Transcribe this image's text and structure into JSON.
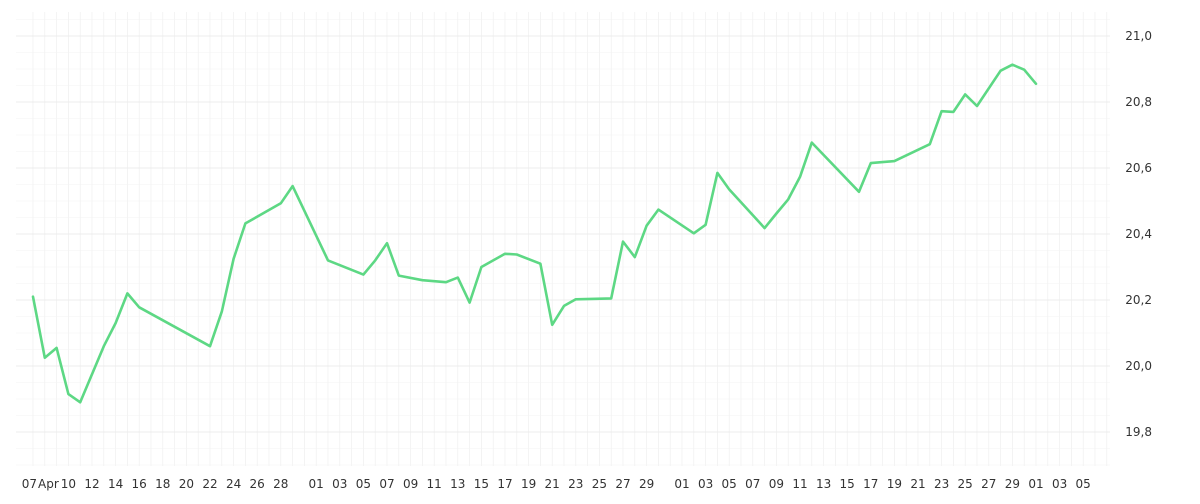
{
  "chart_data": {
    "type": "line",
    "title": "",
    "xlabel": "",
    "ylabel": "",
    "ylim": [
      19.7,
      21.05
    ],
    "y_ticks": [
      19.8,
      20.0,
      20.2,
      20.4,
      20.6,
      20.8,
      21.0
    ],
    "y_tick_labels": [
      "19,8",
      "20,0",
      "20,2",
      "20,4",
      "20,6",
      "20,8",
      "21,0"
    ],
    "y_axis_position": "right",
    "grid": true,
    "legend": "none",
    "colors": {
      "line": "#5dd884",
      "grid": "#ececec",
      "text": "#333333"
    },
    "x_tick_labels": [
      "07",
      "Apr",
      "10",
      "12",
      "14",
      "16",
      "18",
      "20",
      "22",
      "24",
      "26",
      "28",
      "01",
      "03",
      "05",
      "07",
      "09",
      "11",
      "13",
      "15",
      "17",
      "19",
      "21",
      "23",
      "25",
      "27",
      "29",
      "01",
      "03",
      "05",
      "07",
      "09",
      "11",
      "13",
      "15",
      "17",
      "19",
      "21",
      "23",
      "25",
      "27",
      "29",
      "01",
      "03",
      "05"
    ],
    "x_tick_days": [
      0,
      1.2,
      3,
      5,
      7,
      9,
      11,
      13,
      15,
      17,
      19,
      21,
      24,
      26,
      28,
      30,
      32,
      34,
      36,
      38,
      40,
      42,
      44,
      46,
      48,
      50,
      52,
      55,
      57,
      59,
      61,
      63,
      65,
      67,
      69,
      71,
      73,
      75,
      77,
      79,
      81,
      83,
      85,
      87,
      89
    ],
    "series": [
      {
        "x": [
          0,
          1,
          2,
          3,
          4,
          6,
          7,
          8,
          9,
          15,
          16,
          17,
          18,
          21,
          22,
          25,
          28,
          29,
          30,
          31,
          33,
          35,
          36,
          37,
          38,
          40,
          41,
          43,
          44,
          45,
          46,
          49,
          50,
          51,
          52,
          53,
          56,
          57,
          58,
          59,
          62,
          63,
          64,
          65,
          66,
          70,
          71,
          73,
          76,
          77,
          78,
          79,
          80,
          82,
          83,
          84,
          85
        ],
        "y": [
          20.21,
          20.025,
          20.055,
          19.915,
          19.89,
          20.06,
          20.13,
          20.22,
          20.178,
          20.06,
          20.165,
          20.325,
          20.432,
          20.493,
          20.545,
          20.32,
          20.277,
          20.32,
          20.372,
          20.274,
          20.26,
          20.254,
          20.268,
          20.192,
          20.3,
          20.34,
          20.338,
          20.31,
          20.125,
          20.182,
          20.202,
          20.205,
          20.377,
          20.33,
          20.425,
          20.474,
          20.402,
          20.428,
          20.585,
          20.535,
          20.418,
          20.462,
          20.505,
          20.573,
          20.677,
          20.528,
          20.615,
          20.621,
          20.672,
          20.772,
          20.77,
          20.823,
          20.788,
          20.895,
          20.913,
          20.898,
          20.855
        ]
      }
    ]
  }
}
